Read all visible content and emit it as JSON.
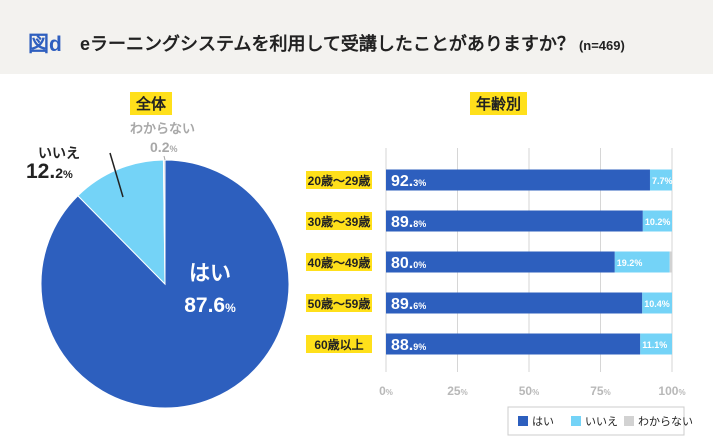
{
  "header": {
    "figure_label": "図d",
    "title": "eラーニングシステムを利用して受講したことがありますか？",
    "sample": "(n=469)"
  },
  "colors": {
    "yes": "#2d5fbe",
    "no": "#74d3f7",
    "unknown": "#d2d2d2",
    "label_bg": "#ffe01b",
    "header_bg": "#f3f2ef"
  },
  "chart_data": [
    {
      "type": "pie",
      "title": "全体",
      "slices": [
        {
          "label": "はい",
          "value": 87.6,
          "display_int": "87.6",
          "display_dec": "",
          "display_unit": "%"
        },
        {
          "label": "いいえ",
          "value": 12.2,
          "display_int": "12.",
          "display_dec": "2",
          "display_unit": "%"
        },
        {
          "label": "わからない",
          "value": 0.2,
          "display_int": "0.",
          "display_dec": "2",
          "display_unit": "%"
        }
      ]
    },
    {
      "type": "bar",
      "orientation": "horizontal",
      "stacked": true,
      "title": "年齢別",
      "categories": [
        "20歳〜29歳",
        "30歳〜39歳",
        "40歳〜49歳",
        "50歳〜59歳",
        "60歳以上"
      ],
      "series": [
        {
          "name": "はい",
          "values": [
            92.3,
            89.8,
            80.0,
            89.6,
            88.9
          ],
          "int_labels": [
            "92.",
            "89.",
            "80.",
            "89.",
            "88."
          ],
          "dec_labels": [
            "3%",
            "8%",
            "0%",
            "6%",
            "9%"
          ]
        },
        {
          "name": "いいえ",
          "values": [
            7.7,
            10.2,
            19.2,
            10.4,
            11.1
          ],
          "labels": [
            "7.7%",
            "10.2%",
            "19.2%",
            "10.4%",
            "11.1%"
          ]
        },
        {
          "name": "わからない",
          "values": [
            0.0,
            0.0,
            0.8,
            0.0,
            0.0
          ]
        }
      ],
      "xticks": [
        "0%",
        "25%",
        "50%",
        "75%",
        "100%"
      ],
      "xlim": [
        0,
        100
      ],
      "legend": [
        "はい",
        "いいえ",
        "わからない"
      ]
    }
  ]
}
